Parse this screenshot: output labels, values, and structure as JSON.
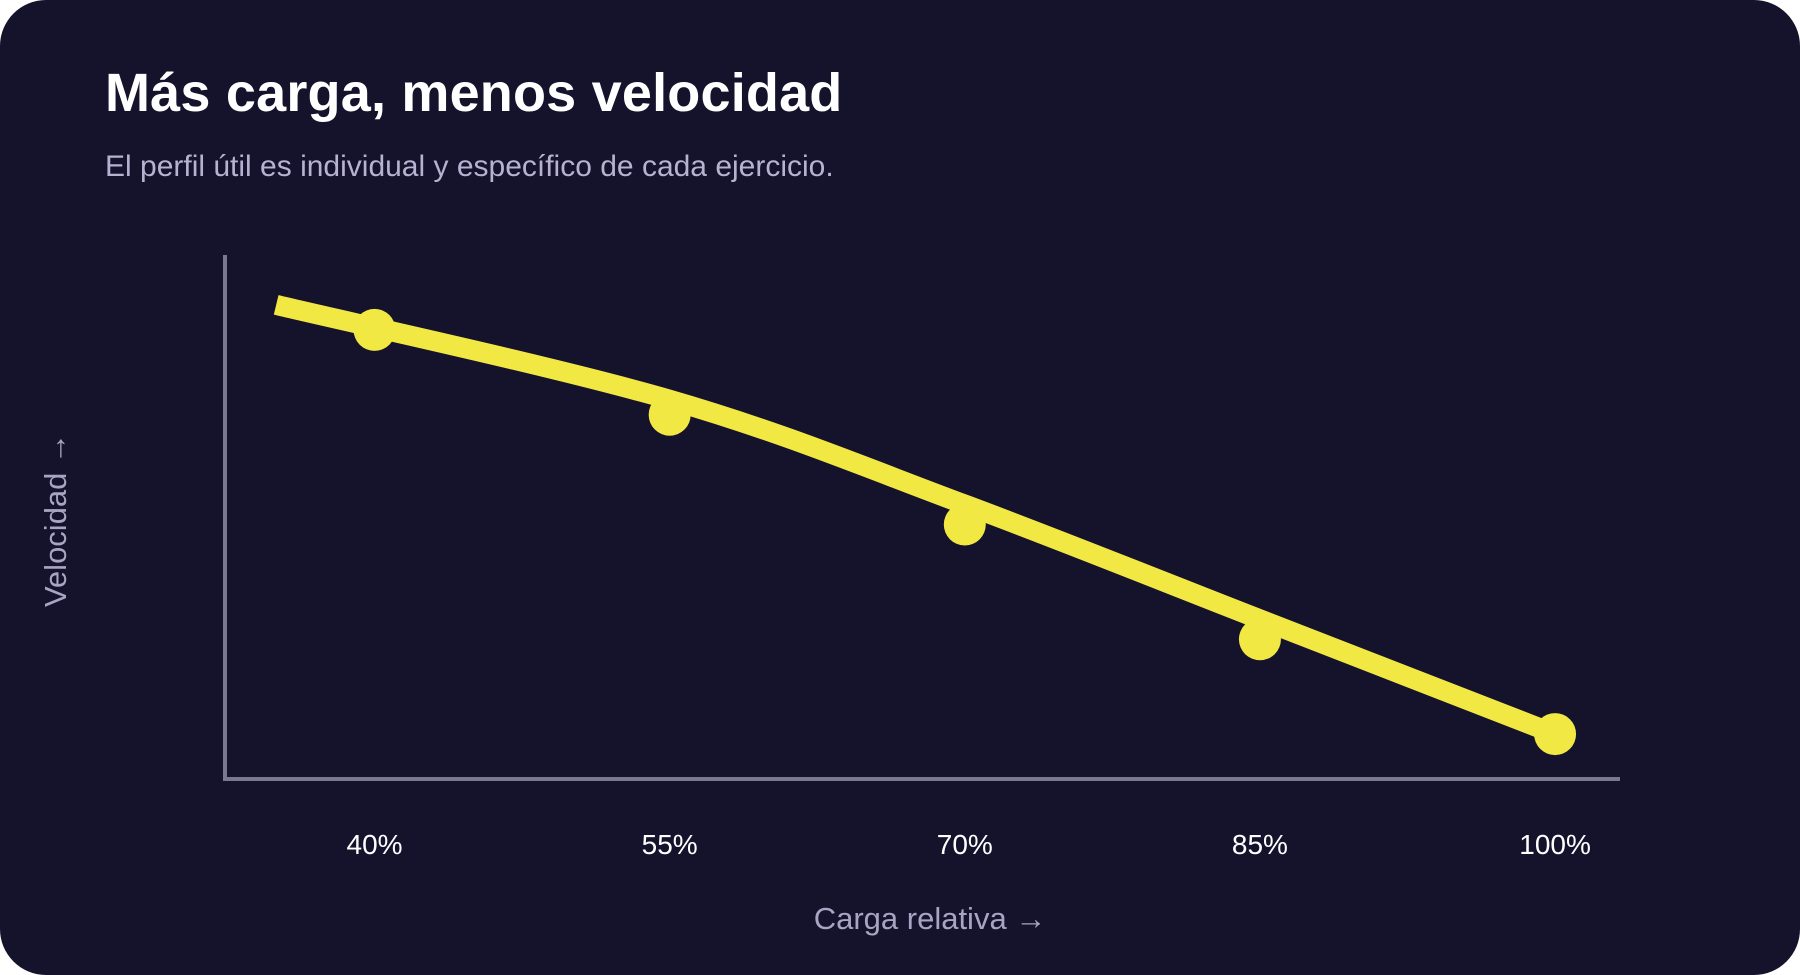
{
  "card": {
    "background": "#15122c"
  },
  "chart_data": {
    "type": "line",
    "title": "Más carga, menos velocidad",
    "subtitle": "El perfil útil es individual y específico de cada ejercicio.",
    "xlabel": "Carga relativa →",
    "ylabel": "Velocidad →",
    "x": [
      40,
      55,
      70,
      85,
      100
    ],
    "x_tick_labels": [
      "40%",
      "55%",
      "70%",
      "85%",
      "100%"
    ],
    "series": [
      {
        "points_y": [
          0.9,
          0.73,
          0.51,
          0.28,
          0.09
        ],
        "color": "#f2e844"
      }
    ],
    "trend_curve": {
      "x": [
        35,
        55,
        70,
        85,
        100
      ],
      "y": [
        0.95,
        0.76,
        0.55,
        0.32,
        0.09
      ],
      "color": "#f2e844"
    },
    "xlim": [
      32.4,
      103.3
    ],
    "ylim": [
      0,
      1.05
    ],
    "y_ticks": "none",
    "grid": false,
    "axis_color": "#7b7791"
  }
}
